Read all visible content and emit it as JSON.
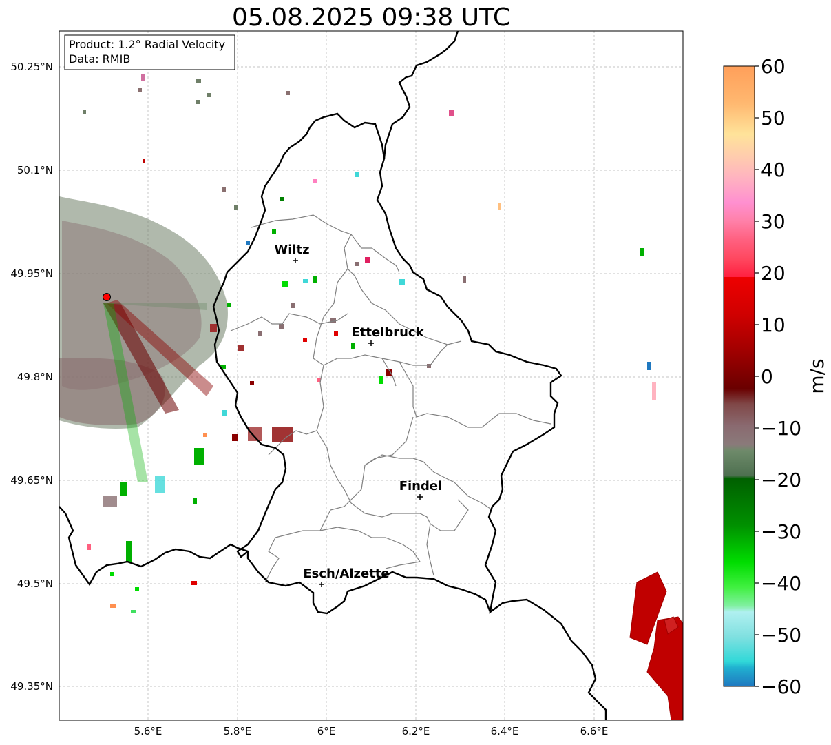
{
  "title": "05.08.2025 09:38 UTC",
  "info_box": {
    "product": "Product: 1.2° Radial Velocity",
    "data": "Data: RMIB"
  },
  "axes": {
    "lat_ticks": [
      "50.25°N",
      "50.1°N",
      "49.95°N",
      "49.8°N",
      "49.65°N",
      "49.5°N",
      "49.35°N"
    ],
    "lon_ticks": [
      "5.6°E",
      "5.8°E",
      "6°E",
      "6.2°E",
      "6.4°E",
      "6.6°E"
    ]
  },
  "cities": [
    {
      "name": "Wiltz"
    },
    {
      "name": "Ettelbruck"
    },
    {
      "name": "Findel"
    },
    {
      "name": "Esch/Alzette"
    }
  ],
  "colorbar": {
    "label": "m/s",
    "ticks": [
      "60",
      "50",
      "40",
      "30",
      "20",
      "10",
      "0",
      "−10",
      "−20",
      "−30",
      "−40",
      "−50",
      "−60"
    ],
    "range": [
      -60,
      60
    ]
  },
  "colors": {
    "radar_site": "#ff0000",
    "outbound_red": "#c00000",
    "inbound_green": "#00b000",
    "near_zero": "#7f7070"
  }
}
